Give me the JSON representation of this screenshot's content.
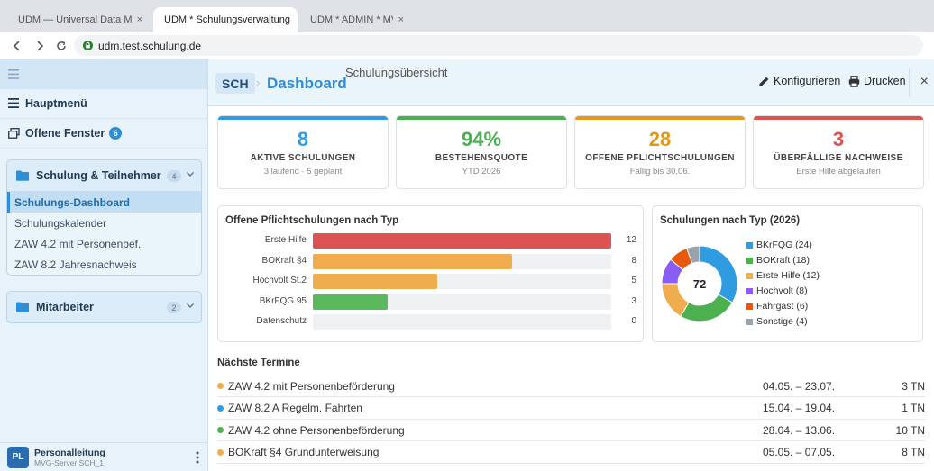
{
  "browser": {
    "tabs": [
      {
        "label": "UDM — Universal Data Manag...",
        "close": "×"
      },
      {
        "label": "UDM * Schulungsverwaltung * M",
        "close": "×"
      },
      {
        "label": "UDM * ADMIN * MVG",
        "close": "×"
      }
    ],
    "url": "udm.test.schulung.de"
  },
  "sidebar": {
    "menu_icon": "hamburger-icon",
    "main_menu": "Hauptmenü",
    "open_windows": "Offene Fenster",
    "open_windows_count": "6",
    "groups": [
      {
        "label": "Schulung & Teilnehmer",
        "count": "4",
        "items": [
          {
            "label": "Schulungs-Dashboard",
            "active": true
          },
          {
            "label": "Schulungskalender"
          },
          {
            "label": "ZAW 4.2 mit Personenbef."
          },
          {
            "label": "ZAW 8.2 Jahresnachweis"
          }
        ]
      },
      {
        "label": "Mitarbeiter",
        "count": "2"
      }
    ],
    "user": {
      "initials": "PL",
      "name": "Personalleitung",
      "server": "MVG-Server SCH_1"
    }
  },
  "header": {
    "chip": "SCH",
    "separator": "›",
    "title": "Dashboard",
    "subtitle": "Schulungsübersicht",
    "configure": "Konfigurieren",
    "print": "Drucken",
    "close": "×"
  },
  "kpis": [
    {
      "value": "8",
      "label": "AKTIVE SCHULUNGEN",
      "sub": "3 laufend · 5 geplant",
      "color": "#2f9be0"
    },
    {
      "value": "94%",
      "label": "BESTEHENSQUOTE",
      "sub": "YTD 2026",
      "color": "#4caf50"
    },
    {
      "value": "28",
      "label": "OFFENE PFLICHTSCHULUNGEN",
      "sub": "Fällig bis 30.06.",
      "color": "#e09a1a"
    },
    {
      "value": "3",
      "label": "ÜBERFÄLLIGE NACHWEISE",
      "sub": "Erste Hilfe abgelaufen",
      "color": "#d9534f"
    }
  ],
  "chart_data": [
    {
      "type": "bar",
      "orientation": "horizontal",
      "title": "Offene Pflichtschulungen nach Typ",
      "categories": [
        "Erste Hilfe",
        "BOKraft §4",
        "Hochvolt St.2",
        "BKrFQG 95",
        "Datenschutz"
      ],
      "values": [
        12,
        8,
        5,
        3,
        0
      ],
      "colors": [
        "#dc5353",
        "#f0ad4e",
        "#f0ad4e",
        "#5cb85c",
        "#f0ad4e"
      ],
      "xlim": [
        0,
        12
      ]
    },
    {
      "type": "pie",
      "donut": true,
      "title": "Schulungen nach Typ (2026)",
      "center_label": "72",
      "categories": [
        "BKrFQG (24)",
        "BOKraft (18)",
        "Erste Hilfe (12)",
        "Hochvolt (8)",
        "Fahrgast (6)",
        "Sonstige (4)"
      ],
      "values": [
        24,
        18,
        12,
        8,
        6,
        4
      ],
      "colors": [
        "#2f9be0",
        "#4caf50",
        "#f0ad4e",
        "#8b5cf6",
        "#e8590c",
        "#9aa3ab"
      ],
      "legend": "right"
    }
  ],
  "next": {
    "title": "Nächste Termine",
    "rows": [
      {
        "name": "ZAW 4.2 mit Personenbeförderung",
        "date": "04.05. – 23.07.",
        "tn": "3 TN",
        "color": "#f0ad4e"
      },
      {
        "name": "ZAW 8.2 A Regelm. Fahrten",
        "date": "15.04. – 19.04.",
        "tn": "1 TN",
        "color": "#2f9be0"
      },
      {
        "name": "ZAW 4.2 ohne Personenbeförderung",
        "date": "28.04. – 13.06.",
        "tn": "10 TN",
        "color": "#4caf50"
      },
      {
        "name": "BOKraft §4 Grundunterweisung",
        "date": "05.05. – 07.05.",
        "tn": "8 TN",
        "color": "#f0ad4e"
      }
    ]
  }
}
